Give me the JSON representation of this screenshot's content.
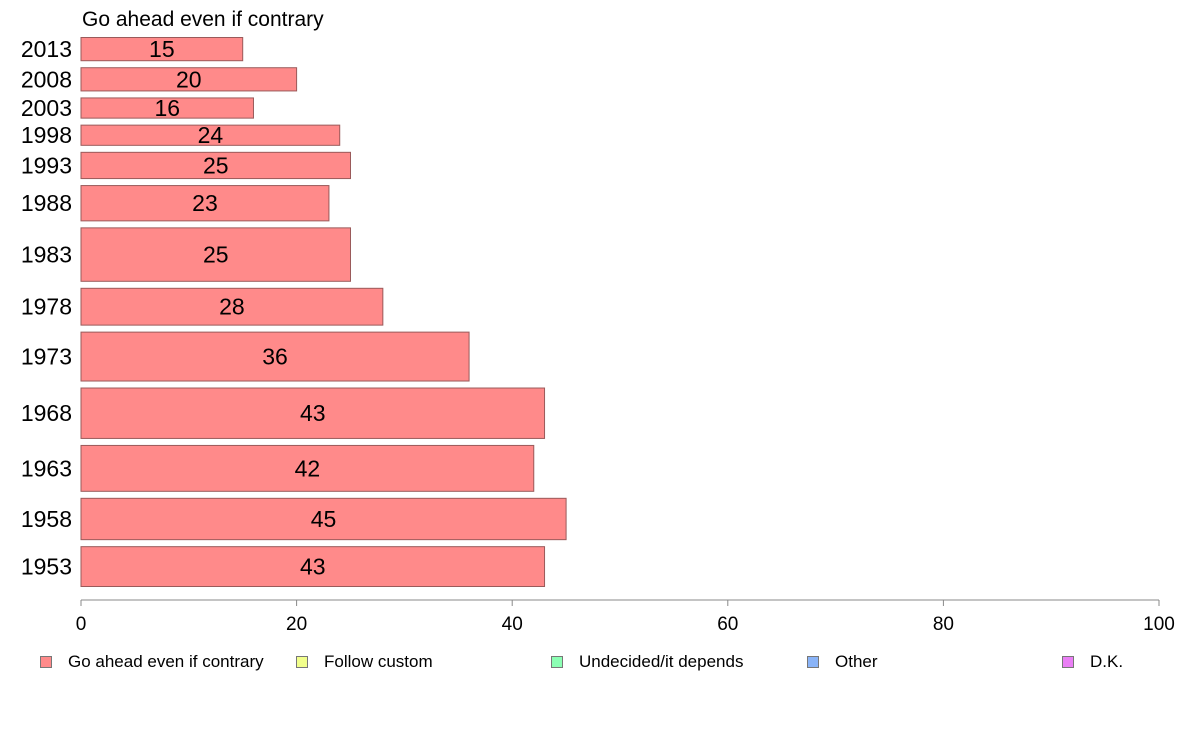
{
  "chart_data": {
    "type": "bar",
    "orientation": "horizontal",
    "title": "Go ahead even if contrary",
    "categories": [
      "2013",
      "2008",
      "2003",
      "1998",
      "1993",
      "1988",
      "1983",
      "1978",
      "1973",
      "1968",
      "1963",
      "1958",
      "1953"
    ],
    "series": [
      {
        "name": "Go ahead even if contrary",
        "color": "#ff8a8a",
        "values": [
          15,
          20,
          16,
          24,
          25,
          23,
          25,
          28,
          36,
          43,
          42,
          45,
          43
        ]
      }
    ],
    "row_weights": [
      20,
      20,
      18,
      18,
      22,
      28,
      40,
      29,
      37,
      38,
      35,
      32,
      31
    ],
    "xlim": [
      0,
      100
    ],
    "xticks": [
      "0",
      "20",
      "40",
      "60",
      "80",
      "100"
    ],
    "grid": false,
    "legend_position": "bottom"
  },
  "legend": [
    {
      "label": "Go ahead even if contrary",
      "color": "#ff8a8a"
    },
    {
      "label": "Follow custom",
      "color": "#f2ff8c"
    },
    {
      "label": "Undecided/it depends",
      "color": "#8cffb4"
    },
    {
      "label": "Other",
      "color": "#8ab4f8"
    },
    {
      "label": "D.K.",
      "color": "#ea7ff5"
    }
  ]
}
